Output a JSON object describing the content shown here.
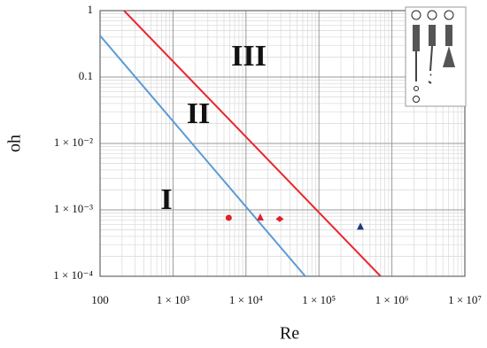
{
  "chart_data": {
    "type": "scatter",
    "xlabel": "Re",
    "ylabel": "oh",
    "xscale": "log",
    "yscale": "log",
    "grid": true,
    "xlim": [
      100,
      10000000
    ],
    "ylim": [
      0.0001,
      1
    ],
    "xticks": [
      100,
      {
        "value": 1000,
        "label": "1 × 10³"
      },
      {
        "value": 10000,
        "label": "1 × 10⁴"
      },
      {
        "value": 100000,
        "label": "1 × 10⁵"
      },
      {
        "value": 1000000,
        "label": "1 × 10⁶"
      },
      {
        "value": 10000000,
        "label": "1 × 10⁷"
      }
    ],
    "yticks": [
      {
        "value": 0.0001,
        "label": "1 × 10⁻⁴"
      },
      {
        "value": 0.001,
        "label": "1 × 10⁻³"
      },
      {
        "value": 0.01,
        "label": "1 × 10⁻²"
      },
      0.1,
      1
    ],
    "lines": [
      {
        "color": "#e8262e",
        "x": [
          213,
          700000
        ],
        "values": [
          1,
          0.0001
        ]
      },
      {
        "color": "#5b9bd5",
        "x": [
          100,
          65000
        ],
        "values": [
          0.42,
          0.0001
        ]
      }
    ],
    "series": [
      {
        "color": "#e0202a",
        "marker": "circle",
        "x": [
          5800
        ],
        "values": [
          0.00076
        ]
      },
      {
        "color": "#e0202a",
        "marker": "triangle",
        "x": [
          15700
        ],
        "values": [
          0.00077
        ]
      },
      {
        "color": "#e0202a",
        "marker": "diamond",
        "x": [
          29000
        ],
        "values": [
          0.00073
        ]
      },
      {
        "color": "#1f3a7a",
        "marker": "triangle",
        "x": [
          370000
        ],
        "values": [
          0.00056
        ]
      }
    ],
    "annotations": [
      "I",
      "II",
      "III"
    ]
  }
}
